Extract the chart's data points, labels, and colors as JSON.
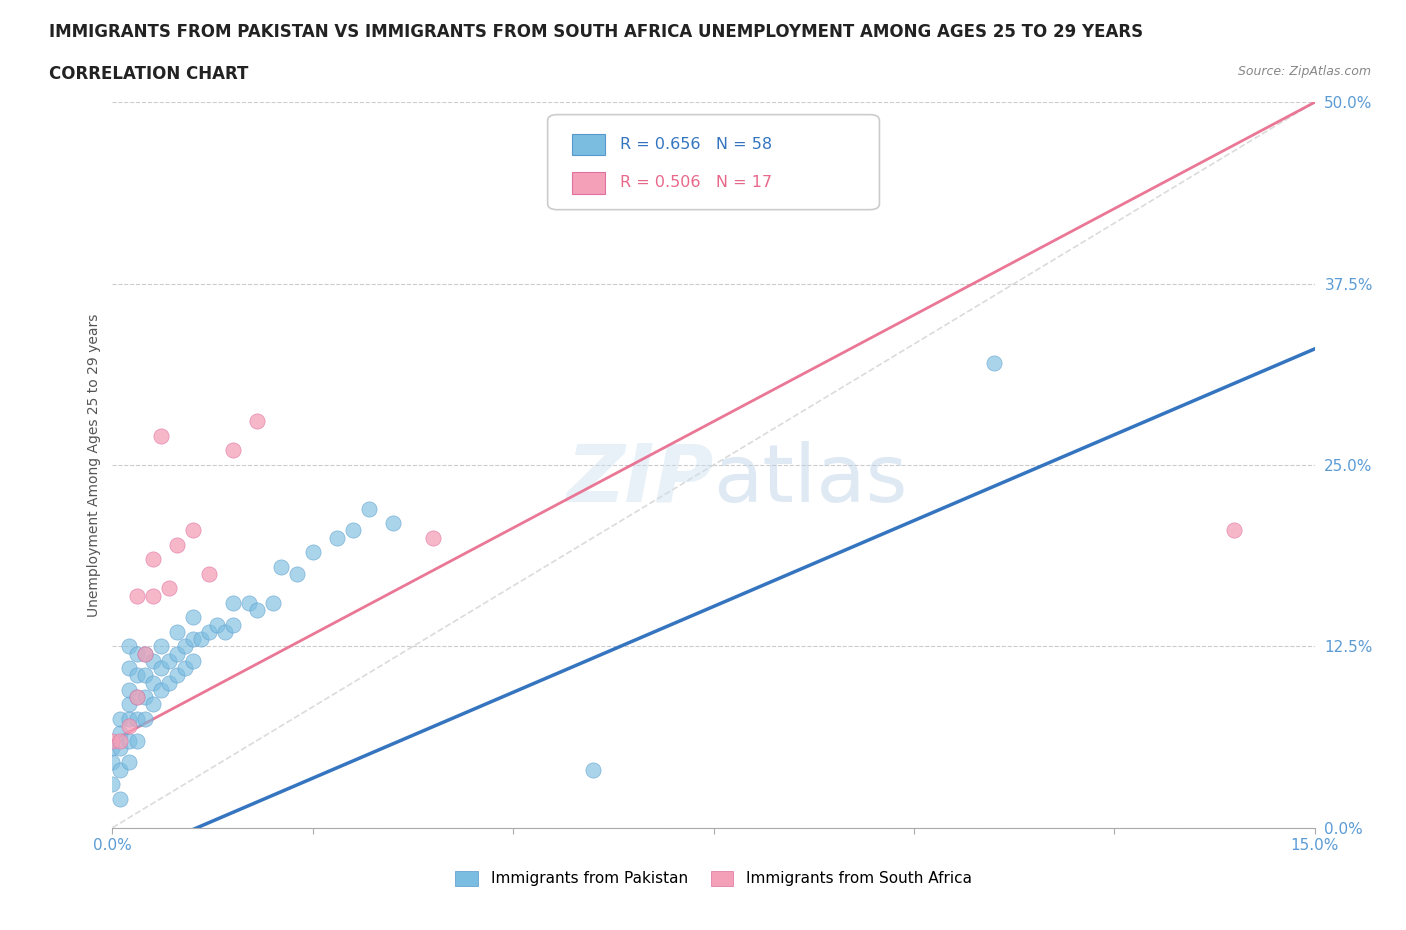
{
  "title_line1": "IMMIGRANTS FROM PAKISTAN VS IMMIGRANTS FROM SOUTH AFRICA UNEMPLOYMENT AMONG AGES 25 TO 29 YEARS",
  "title_line2": "CORRELATION CHART",
  "source_text": "Source: ZipAtlas.com",
  "ylabel_ticks": [
    "0.0%",
    "12.5%",
    "25.0%",
    "37.5%",
    "50.0%"
  ],
  "ylabel_label": "Unemployment Among Ages 25 to 29 years",
  "color_pakistan": "#7bbde0",
  "color_s_africa": "#f4a0b8",
  "color_pakistan_line": "#3575c0",
  "color_s_africa_line": "#e8688a",
  "watermark_color": "#cce0f0",
  "pakistan_x": [
    0.0,
    0.0,
    0.0,
    0.001,
    0.001,
    0.001,
    0.001,
    0.001,
    0.002,
    0.002,
    0.002,
    0.002,
    0.002,
    0.002,
    0.002,
    0.003,
    0.003,
    0.003,
    0.003,
    0.003,
    0.004,
    0.004,
    0.004,
    0.004,
    0.005,
    0.005,
    0.005,
    0.006,
    0.006,
    0.006,
    0.007,
    0.007,
    0.008,
    0.008,
    0.008,
    0.009,
    0.009,
    0.01,
    0.01,
    0.01,
    0.011,
    0.012,
    0.013,
    0.014,
    0.015,
    0.015,
    0.017,
    0.018,
    0.02,
    0.021,
    0.023,
    0.025,
    0.028,
    0.03,
    0.032,
    0.035,
    0.06,
    0.11
  ],
  "pakistan_y": [
    0.03,
    0.045,
    0.055,
    0.02,
    0.04,
    0.055,
    0.065,
    0.075,
    0.045,
    0.06,
    0.075,
    0.085,
    0.095,
    0.11,
    0.125,
    0.06,
    0.075,
    0.09,
    0.105,
    0.12,
    0.075,
    0.09,
    0.105,
    0.12,
    0.085,
    0.1,
    0.115,
    0.095,
    0.11,
    0.125,
    0.1,
    0.115,
    0.105,
    0.12,
    0.135,
    0.11,
    0.125,
    0.115,
    0.13,
    0.145,
    0.13,
    0.135,
    0.14,
    0.135,
    0.14,
    0.155,
    0.155,
    0.15,
    0.155,
    0.18,
    0.175,
    0.19,
    0.2,
    0.205,
    0.22,
    0.21,
    0.04,
    0.32
  ],
  "s_africa_x": [
    0.0,
    0.001,
    0.002,
    0.003,
    0.003,
    0.004,
    0.005,
    0.005,
    0.006,
    0.007,
    0.008,
    0.01,
    0.012,
    0.015,
    0.018,
    0.04,
    0.14
  ],
  "s_africa_y": [
    0.06,
    0.06,
    0.07,
    0.09,
    0.16,
    0.12,
    0.16,
    0.185,
    0.27,
    0.165,
    0.195,
    0.205,
    0.175,
    0.26,
    0.28,
    0.2,
    0.205
  ],
  "pk_trend": [
    0.0,
    0.15,
    -0.025,
    0.33
  ],
  "sa_trend": [
    0.0,
    0.15,
    0.06,
    0.5
  ],
  "diag_line": [
    0.0,
    0.15,
    0.0,
    0.5
  ],
  "xlim": [
    0.0,
    0.15
  ],
  "ylim": [
    0.0,
    0.5
  ],
  "background_color": "#ffffff",
  "grid_color": "#cccccc",
  "title_fontsize": 12,
  "axis_label_fontsize": 10,
  "tick_fontsize": 11
}
